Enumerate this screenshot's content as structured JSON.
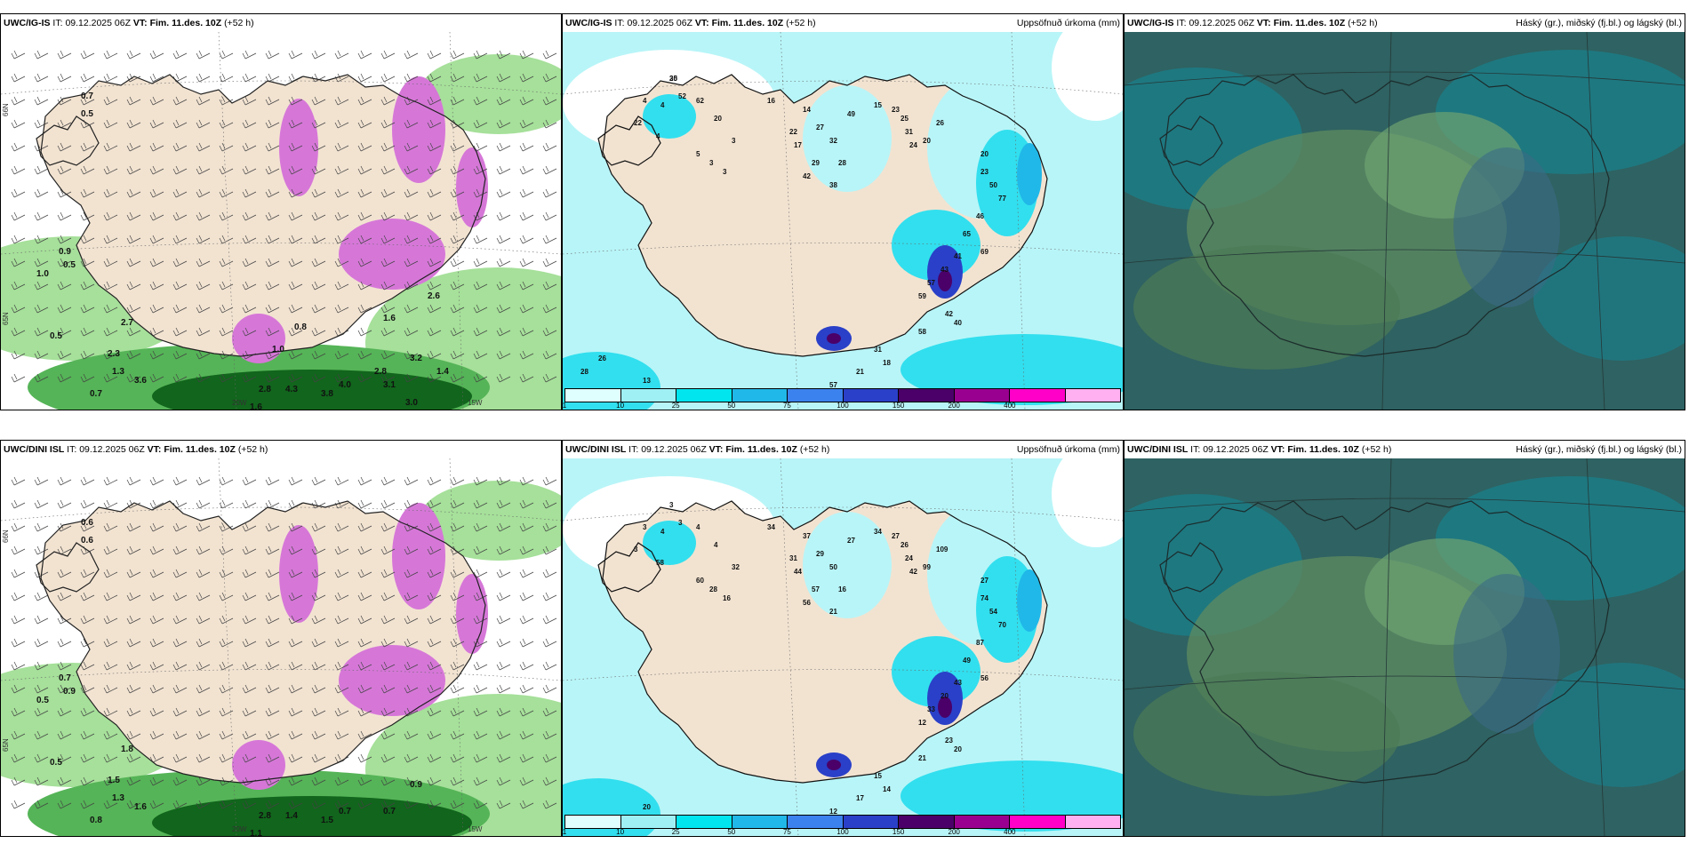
{
  "rows": [
    {
      "model": "UWC/IG-IS",
      "it_label": "IT:",
      "it_value": "09.12.2025 06Z",
      "vt_label": "VT:",
      "vt_value": "Fim. 11.des. 10Z",
      "lead": "(+52 h)",
      "panels": [
        {
          "kind": "precip-wind",
          "right_title": ""
        },
        {
          "kind": "accum-precip",
          "right_title": "Uppsöfnuð úrkoma (mm)",
          "numbers": [
            "30",
            "52",
            "62",
            "20",
            "22",
            "4",
            "4",
            "4",
            "5",
            "3",
            "3",
            "3",
            "16",
            "14",
            "27",
            "32",
            "22",
            "17",
            "29",
            "42",
            "38",
            "28",
            "49",
            "15",
            "23",
            "25",
            "31",
            "24",
            "20",
            "26",
            "20",
            "23",
            "50",
            "77",
            "46",
            "65",
            "69",
            "41",
            "43",
            "57",
            "59",
            "42",
            "40",
            "58",
            "31",
            "18",
            "21",
            "57",
            "13",
            "19",
            "28",
            "26",
            "25"
          ]
        },
        {
          "kind": "clouds",
          "right_title": "Háský (gr.), miðský (fj.bl.) og lágský (bl.)"
        }
      ],
      "map_labels": [
        "0.7",
        "0.5",
        "1.0",
        "0.9",
        "0.5",
        "0.5",
        "0.7",
        "1.3",
        "2.3",
        "3.6",
        "2.7",
        "2.8",
        "1.6",
        "4.3",
        "3.8",
        "4.0",
        "3.1",
        "3.2",
        "3.0",
        "2.8",
        "1.4",
        "1.6",
        "2.6",
        "1.0",
        "0.8"
      ],
      "axis_labels": [
        "66N",
        "65N",
        "20W",
        "15W"
      ]
    },
    {
      "model": "UWC/DINI ISL",
      "it_label": "IT:",
      "it_value": "09.12.2025 06Z",
      "vt_label": "VT:",
      "vt_value": "Fim. 11.des. 10Z",
      "lead": "(+52 h)",
      "panels": [
        {
          "kind": "precip-wind",
          "right_title": ""
        },
        {
          "kind": "accum-precip",
          "right_title": "Uppsöfnuð úrkoma (mm)",
          "numbers": [
            "3",
            "3",
            "4",
            "4",
            "3",
            "3",
            "4",
            "58",
            "60",
            "28",
            "16",
            "32",
            "34",
            "37",
            "29",
            "50",
            "31",
            "44",
            "57",
            "56",
            "21",
            "16",
            "27",
            "34",
            "27",
            "26",
            "24",
            "42",
            "99",
            "109",
            "27",
            "74",
            "54",
            "70",
            "87",
            "49",
            "56",
            "43",
            "20",
            "33",
            "12",
            "23",
            "20",
            "21",
            "15",
            "14",
            "17",
            "12",
            "20",
            "22"
          ]
        },
        {
          "kind": "clouds",
          "right_title": "Háský (gr.), miðský (fj.bl.) og lágský (bl.)"
        }
      ],
      "map_labels": [
        "0.6",
        "0.6",
        "0.5",
        "0.7",
        "0.9",
        "0.5",
        "0.8",
        "1.3",
        "1.5",
        "1.6",
        "1.8",
        "2.8",
        "1.1",
        "1.4",
        "1.5",
        "0.7",
        "0.7",
        "0.9"
      ],
      "axis_labels": [
        "66N",
        "65N",
        "20W",
        "15W"
      ]
    }
  ],
  "colorbar": {
    "ticks": [
      "1",
      "10",
      "25",
      "50",
      "75",
      "100",
      "150",
      "200",
      "400"
    ],
    "colors": [
      "#dffefe",
      "#9ff0f5",
      "#00e5ee",
      "#20b8e8",
      "#3c82ee",
      "#2a40c8",
      "#4a0068",
      "#9a0090",
      "#ff00c8",
      "#ffb0f0"
    ]
  },
  "colors": {
    "land": "#f2e3d1",
    "sea_bg": "#ffffff",
    "green_light": "#a6e09a",
    "green_mid": "#55b457",
    "green_dark": "#11651c",
    "magenta": "#d677d8",
    "cyan_light": "#b8f5f8",
    "cyan": "#32dfee",
    "cloud_base": "#2f6262",
    "cloud_teal": "#1d7b84",
    "cloud_green": "#5b8a60"
  }
}
